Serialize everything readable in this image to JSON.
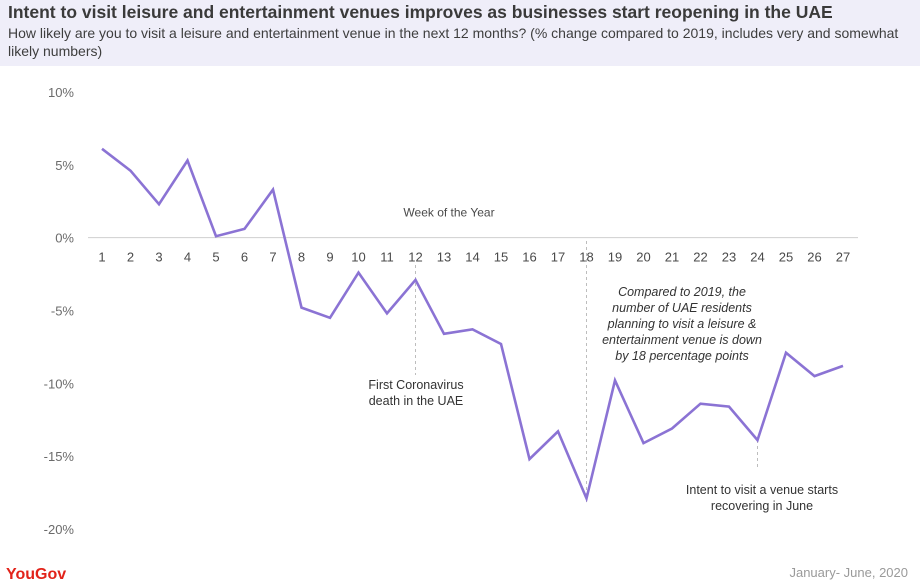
{
  "header": {
    "title": "Intent to visit leisure and entertainment venues improves as businesses start reopening in the UAE",
    "subtitle": "How likely are you to visit a leisure and entertainment venue in the next 12 months? (% change compared to 2019, includes very and somewhat likely numbers)"
  },
  "footer": {
    "logo": "YouGov",
    "date_range": "January- June, 2020"
  },
  "colors": {
    "line": "#8b73d4",
    "header_bg": "#efeef9",
    "logo": "#e2231a"
  },
  "chart_data": {
    "type": "line",
    "x_axis_label": "Week of the Year",
    "ylim": [
      -20,
      10
    ],
    "y_ticks": [
      10,
      5,
      0,
      -5,
      -10,
      -15,
      -20
    ],
    "y_tick_labels": [
      "10%",
      "5%",
      "0%",
      "-5%",
      "-10%",
      "-15%",
      "-20%"
    ],
    "x": [
      1,
      2,
      3,
      4,
      5,
      6,
      7,
      8,
      9,
      10,
      11,
      12,
      13,
      14,
      15,
      16,
      17,
      18,
      19,
      20,
      21,
      22,
      23,
      24,
      25,
      26,
      27
    ],
    "series": [
      {
        "values": [
          6.1,
          4.6,
          2.3,
          5.3,
          0.1,
          0.6,
          3.3,
          -4.8,
          -5.5,
          -2.4,
          -5.2,
          -2.9,
          -6.6,
          -6.3,
          -7.3,
          -15.2,
          -13.3,
          -17.9,
          -9.8,
          -14.1,
          -13.1,
          -11.4,
          -11.6,
          -13.9,
          -7.9,
          -9.5,
          -8.8
        ]
      }
    ],
    "grid": false,
    "legend": "none",
    "annotations": [
      {
        "week": 12,
        "text": [
          "First Coronavirus",
          "death in the UAE"
        ],
        "style": "normal"
      },
      {
        "week": 18,
        "text": [
          "Compared to 2019, the",
          "number of UAE residents",
          "planning to visit a leisure &",
          "entertainment venue is down",
          "by 18 percentage points"
        ],
        "style": "italic"
      },
      {
        "week": 24,
        "text": [
          "Intent to visit a venue starts",
          "recovering in June"
        ],
        "style": "normal"
      }
    ]
  }
}
